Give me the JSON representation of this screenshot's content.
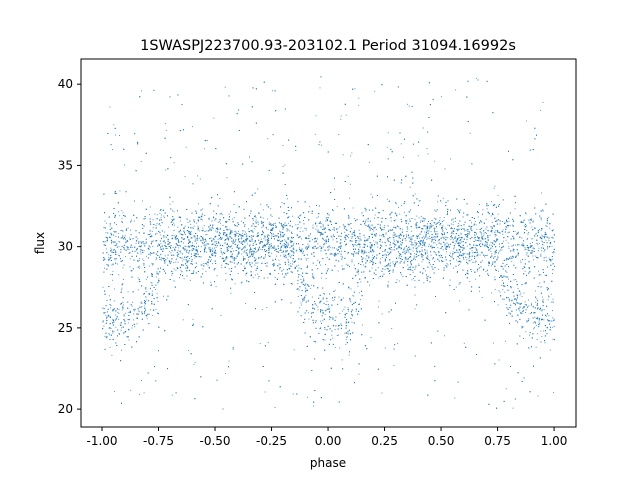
{
  "chart_data": {
    "type": "scatter",
    "title": "1SWASPJ223700.93-203102.1 Period 31094.16992s",
    "xlabel": "phase",
    "ylabel": "flux",
    "xlim": [
      -1.093,
      1.097
    ],
    "ylim": [
      18.9,
      41.55
    ],
    "xticks": [
      "-1.00",
      "-0.75",
      "-0.50",
      "-0.25",
      "0.00",
      "0.25",
      "0.50",
      "0.75",
      "1.00"
    ],
    "yticks": [
      "20",
      "25",
      "30",
      "35",
      "40"
    ],
    "grid": false,
    "marker_color": "#1f77b4",
    "baseline_flux": 30.2,
    "eclipse_points": {
      "x": [
        -1.0,
        -0.95,
        -0.9,
        -0.85,
        -0.8,
        -0.75,
        -0.15,
        -0.1,
        -0.05,
        0.0,
        0.05,
        0.1,
        0.15,
        0.75,
        0.8,
        0.85,
        0.9,
        0.95,
        1.0
      ],
      "y": [
        25.8,
        25.6,
        25.7,
        26.0,
        26.8,
        28.0,
        28.0,
        26.8,
        26.0,
        25.6,
        25.6,
        26.0,
        27.0,
        28.0,
        27.0,
        26.3,
        25.9,
        25.7,
        25.8
      ]
    },
    "flux_range": [
      20,
      40.5
    ]
  }
}
